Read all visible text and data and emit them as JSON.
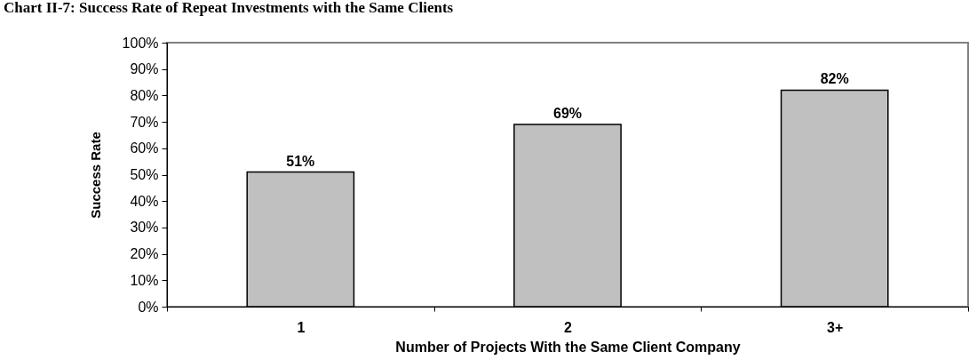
{
  "chart_data": {
    "type": "bar",
    "title": "Chart II-7: Success Rate of Repeat Investments with the Same Clients",
    "xlabel": "Number of Projects With the Same Client Company",
    "ylabel": "Success Rate",
    "categories": [
      "1",
      "2",
      "3+"
    ],
    "values": [
      51,
      69,
      82
    ],
    "value_labels": [
      "51%",
      "69%",
      "82%"
    ],
    "color": "#c0c0c0",
    "ylim": [
      0,
      100
    ],
    "yticks": [
      {
        "value": 0,
        "label": "0%"
      },
      {
        "value": 10,
        "label": "10%"
      },
      {
        "value": 20,
        "label": "20%"
      },
      {
        "value": 30,
        "label": "30%"
      },
      {
        "value": 40,
        "label": "40%"
      },
      {
        "value": 50,
        "label": "50%"
      },
      {
        "value": 60,
        "label": "60%"
      },
      {
        "value": 70,
        "label": "70%"
      },
      {
        "value": 80,
        "label": "80%"
      },
      {
        "value": 90,
        "label": "90%"
      },
      {
        "value": 100,
        "label": "100%"
      }
    ],
    "grid": false
  }
}
